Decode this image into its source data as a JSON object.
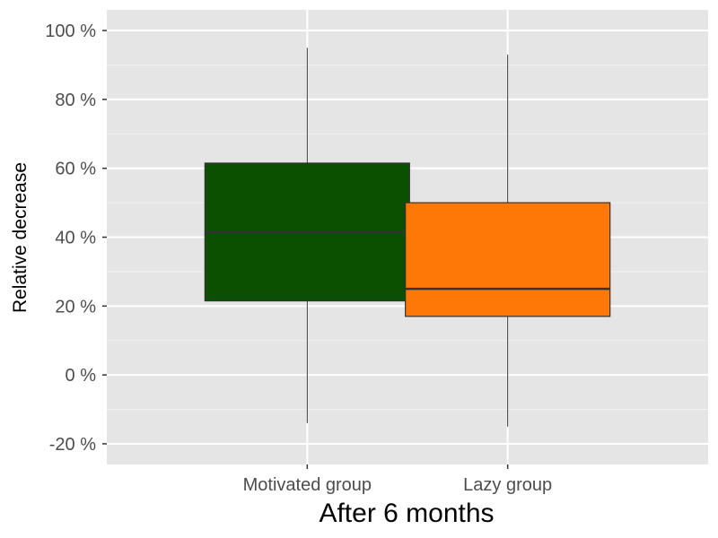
{
  "chart_data": {
    "type": "box",
    "xlabel": "After 6 months",
    "ylabel": "Relative decrease",
    "y_tick_values": [
      -20,
      0,
      20,
      40,
      60,
      80,
      100
    ],
    "y_tick_labels": [
      "-20 %",
      "0 %",
      "20 %",
      "40 %",
      "60 %",
      "80 %",
      "100 %"
    ],
    "ylim": [
      -26,
      106
    ],
    "grid": true,
    "background": "#e5e5e5",
    "categories": [
      "Motivated group",
      "Lazy group"
    ],
    "boxes": [
      {
        "category": "Motivated group",
        "min": -14,
        "q1": 21.5,
        "median": 41.5,
        "q3": 61.5,
        "max": 95,
        "color": "#0b5000"
      },
      {
        "category": "Lazy group",
        "min": -15,
        "q1": 17,
        "median": 25,
        "q3": 50,
        "max": 93,
        "color": "#fe7808"
      }
    ]
  }
}
